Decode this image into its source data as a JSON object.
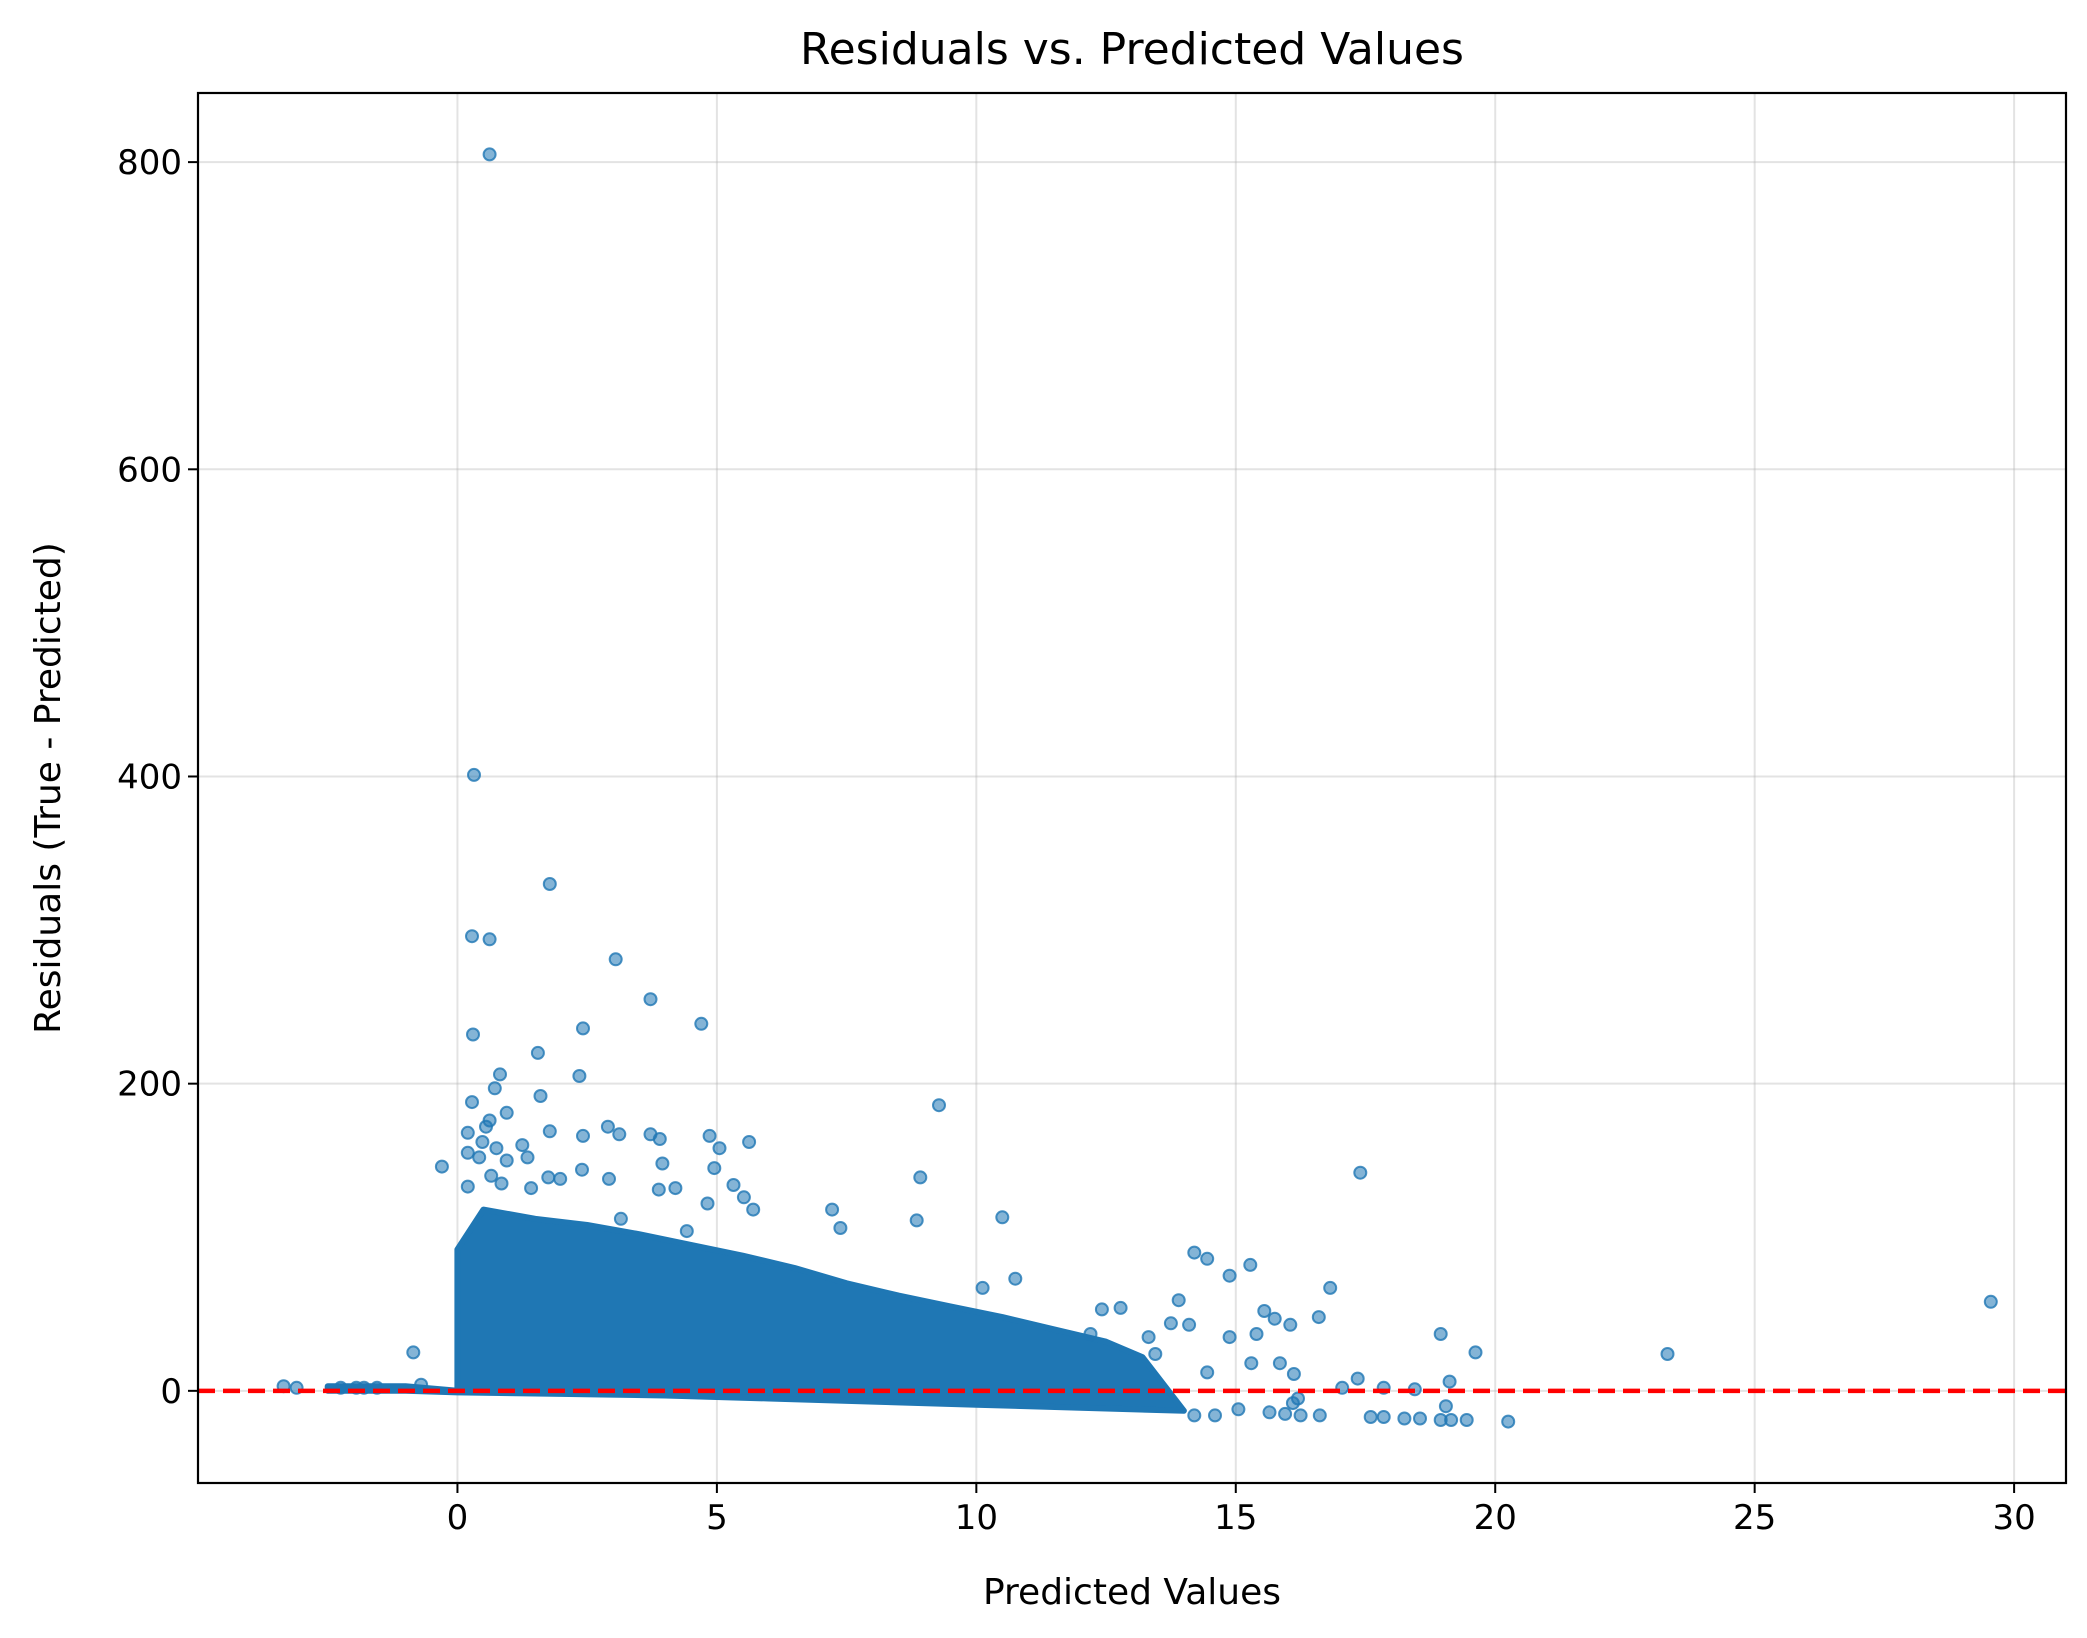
{
  "chart_data": {
    "type": "scatter",
    "title": "Residuals vs. Predicted Values",
    "xlabel": "Predicted Values",
    "ylabel": "Residuals (True - Predicted)",
    "xlim": [
      -5.0,
      31.0
    ],
    "ylim": [
      -60,
      845
    ],
    "x_ticks": [
      0,
      5,
      10,
      15,
      20,
      25,
      30
    ],
    "x_tick_labels": [
      "0",
      "5",
      "10",
      "15",
      "20",
      "25",
      "30"
    ],
    "y_ticks": [
      0,
      200,
      400,
      600,
      800
    ],
    "y_tick_labels": [
      "0",
      "200",
      "400",
      "600",
      "800"
    ],
    "grid": true,
    "reference_line": {
      "y": 0,
      "style": "dashed",
      "color": "#ff0000"
    },
    "point_color": "#1f77b4",
    "point_alpha": 0.55,
    "dense_band": [
      [
        0.0,
        0
      ],
      [
        0.0,
        92
      ],
      [
        0.5,
        118
      ],
      [
        1.5,
        112
      ],
      [
        2.5,
        108
      ],
      [
        3.5,
        102
      ],
      [
        4.5,
        95
      ],
      [
        5.5,
        88
      ],
      [
        6.5,
        80
      ],
      [
        7.5,
        70
      ],
      [
        8.5,
        62
      ],
      [
        9.5,
        55
      ],
      [
        10.5,
        48
      ],
      [
        11.5,
        40
      ],
      [
        12.5,
        32
      ],
      [
        13.2,
        22
      ],
      [
        14.0,
        -13
      ],
      [
        12.0,
        -11
      ],
      [
        10.0,
        -9
      ],
      [
        8.0,
        -7
      ],
      [
        6.0,
        -5
      ],
      [
        4.0,
        -3
      ],
      [
        2.0,
        -2
      ],
      [
        0.0,
        -1
      ],
      [
        -1.0,
        0
      ],
      [
        -2.5,
        0
      ],
      [
        -2.5,
        3
      ],
      [
        -1.0,
        3
      ]
    ],
    "points": [
      [
        0.62,
        805
      ],
      [
        0.32,
        401
      ],
      [
        1.78,
        330
      ],
      [
        0.28,
        296
      ],
      [
        0.62,
        294
      ],
      [
        3.05,
        281
      ],
      [
        3.72,
        255
      ],
      [
        4.7,
        239
      ],
      [
        2.42,
        236
      ],
      [
        0.3,
        232
      ],
      [
        1.55,
        220
      ],
      [
        0.82,
        206
      ],
      [
        2.35,
        205
      ],
      [
        0.72,
        197
      ],
      [
        1.6,
        192
      ],
      [
        0.28,
        188
      ],
      [
        9.28,
        186
      ],
      [
        0.95,
        181
      ],
      [
        0.62,
        176
      ],
      [
        0.55,
        172
      ],
      [
        2.9,
        172
      ],
      [
        1.78,
        169
      ],
      [
        3.12,
        167
      ],
      [
        0.2,
        168
      ],
      [
        2.42,
        166
      ],
      [
        3.72,
        167
      ],
      [
        4.86,
        166
      ],
      [
        3.9,
        164
      ],
      [
        0.48,
        162
      ],
      [
        5.62,
        162
      ],
      [
        1.25,
        160
      ],
      [
        5.05,
        158
      ],
      [
        0.75,
        158
      ],
      [
        0.2,
        155
      ],
      [
        0.42,
        152
      ],
      [
        0.95,
        150
      ],
      [
        1.35,
        152
      ],
      [
        4.95,
        145
      ],
      [
        3.95,
        148
      ],
      [
        -0.3,
        146
      ],
      [
        2.4,
        144
      ],
      [
        0.85,
        135
      ],
      [
        17.4,
        142
      ],
      [
        8.92,
        139
      ],
      [
        2.92,
        138
      ],
      [
        1.98,
        138
      ],
      [
        1.75,
        139
      ],
      [
        0.65,
        140
      ],
      [
        5.32,
        134
      ],
      [
        4.2,
        132
      ],
      [
        3.88,
        131
      ],
      [
        1.42,
        132
      ],
      [
        0.2,
        133
      ],
      [
        5.52,
        126
      ],
      [
        4.82,
        122
      ],
      [
        5.7,
        118
      ],
      [
        7.22,
        118
      ],
      [
        10.5,
        113
      ],
      [
        8.85,
        111
      ],
      [
        3.15,
        112
      ],
      [
        7.38,
        106
      ],
      [
        4.42,
        104
      ],
      [
        14.2,
        90
      ],
      [
        14.45,
        86
      ],
      [
        15.28,
        82
      ],
      [
        14.88,
        75
      ],
      [
        10.75,
        73
      ],
      [
        16.82,
        67
      ],
      [
        10.12,
        67
      ],
      [
        13.9,
        59
      ],
      [
        29.55,
        58
      ],
      [
        15.55,
        52
      ],
      [
        12.42,
        53
      ],
      [
        12.78,
        54
      ],
      [
        15.75,
        47
      ],
      [
        16.6,
        48
      ],
      [
        16.05,
        43
      ],
      [
        13.75,
        44
      ],
      [
        14.1,
        43
      ],
      [
        18.95,
        37
      ],
      [
        14.88,
        35
      ],
      [
        15.4,
        37
      ],
      [
        12.2,
        37
      ],
      [
        13.32,
        35
      ],
      [
        -0.85,
        25
      ],
      [
        19.62,
        25
      ],
      [
        23.32,
        24
      ],
      [
        13.45,
        24
      ],
      [
        15.3,
        18
      ],
      [
        15.85,
        18
      ],
      [
        16.12,
        11
      ],
      [
        14.45,
        12
      ],
      [
        17.35,
        8
      ],
      [
        19.12,
        6
      ],
      [
        17.05,
        2
      ],
      [
        18.45,
        1
      ],
      [
        17.85,
        2
      ],
      [
        -3.35,
        3
      ],
      [
        -3.1,
        2
      ],
      [
        -2.25,
        2
      ],
      [
        -1.95,
        2
      ],
      [
        -1.8,
        2
      ],
      [
        -1.55,
        2
      ],
      [
        -0.7,
        4
      ],
      [
        15.05,
        -12
      ],
      [
        15.65,
        -14
      ],
      [
        16.25,
        -16
      ],
      [
        16.62,
        -16
      ],
      [
        17.6,
        -17
      ],
      [
        17.85,
        -17
      ],
      [
        18.25,
        -18
      ],
      [
        18.55,
        -18
      ],
      [
        18.95,
        -19
      ],
      [
        19.15,
        -19
      ],
      [
        19.45,
        -19
      ],
      [
        20.25,
        -20
      ],
      [
        19.05,
        -10
      ],
      [
        16.2,
        -5
      ],
      [
        14.6,
        -16
      ],
      [
        14.2,
        -16
      ],
      [
        15.95,
        -15
      ],
      [
        16.1,
        -8
      ]
    ]
  }
}
